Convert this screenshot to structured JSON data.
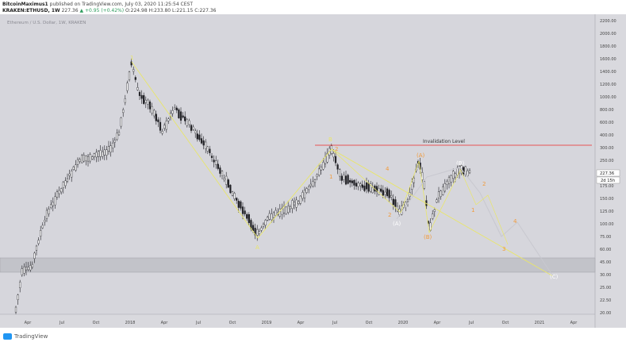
{
  "header": {
    "author": "BitcoinMaximus1",
    "published_text": "published on TradingView.com, July 03, 2020 11:25:54 CEST",
    "symbol": "KRAKEN:ETHUSD, 1W",
    "last": "227.36",
    "change_arrow": "▲",
    "change": "+0.95 (+0.42%)",
    "ohlc": "O:224.98 H:233.80 L:221.15 C:227.36"
  },
  "chart": {
    "pane_title": "Ethereum / U.S. Dollar, 1W, KRAKEN",
    "invalidation_label": "Invalidation Level",
    "price_tag": "227.36",
    "countdown_tag": "2d 15h",
    "colors": {
      "background": "#d6d6dc",
      "axis_background": "#d9d9de",
      "support_band": "#c2c3c9",
      "wave_yellow": "#e9e66a",
      "wave_orange": "#f29a3a",
      "projection": "#c8c8cf",
      "invalidation": "#e85454",
      "candle_up": "#ffffff",
      "candle_down": "#1f1f24"
    },
    "y_labels": [
      "2200.00",
      "2000.00",
      "1800.00",
      "1600.00",
      "1400.00",
      "1200.00",
      "1000.00",
      "800.00",
      "600.00",
      "400.00",
      "300.00",
      "250.00",
      "200.00",
      "175.00",
      "150.00",
      "125.00",
      "100.00",
      "75.00",
      "60.00",
      "45.00",
      "30.00",
      "25.00",
      "22.50",
      "20.00"
    ],
    "x_labels": [
      "Apr",
      "Jul",
      "Oct",
      "2018",
      "Apr",
      "Jul",
      "Oct",
      "2019",
      "Apr",
      "Jul",
      "Oct",
      "2020",
      "Apr",
      "Jul",
      "Oct",
      "2021",
      "Apr"
    ],
    "wave_labels": {
      "peak_2018": "1",
      "low_2018": "A",
      "peak_2019": "B",
      "final": "C",
      "sub_1": "1",
      "sub_2": "2",
      "sub_3": "3",
      "sub_4": "4",
      "sub_5": "5",
      "paren_A": "(A)",
      "paren_B": "(B)",
      "paren_A_white": "(A)",
      "paren_B_white": "(B)",
      "proj_1": "1",
      "proj_2": "2",
      "proj_3": "3",
      "proj_4": "4",
      "proj_C": "(C)"
    }
  },
  "footer": {
    "brand": "TradingView"
  }
}
